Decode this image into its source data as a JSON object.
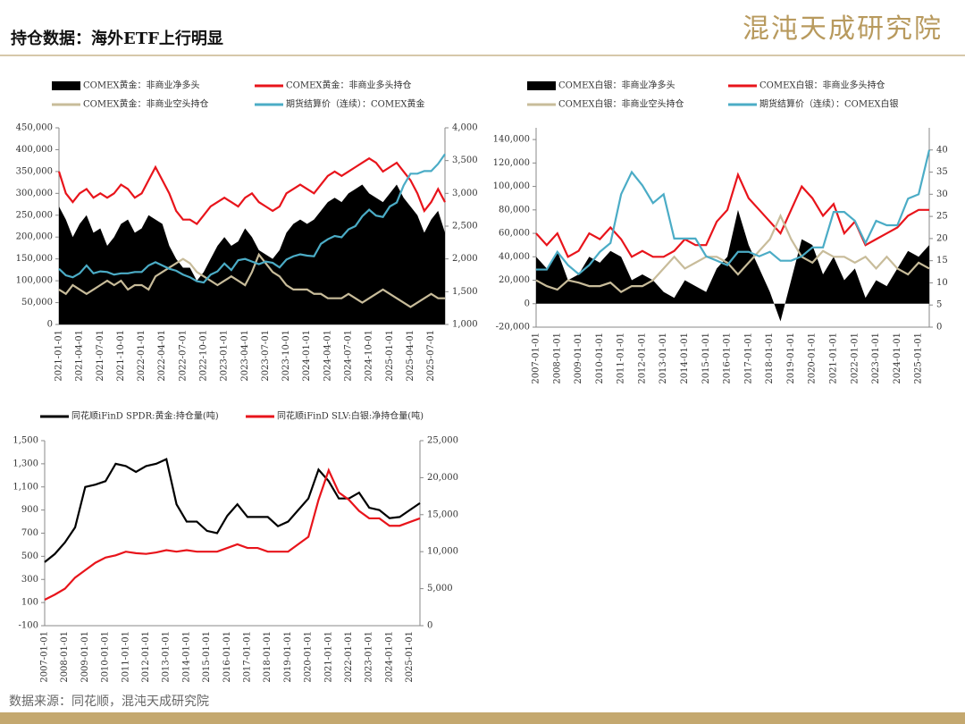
{
  "header": {
    "title": "持仓数据：海外ETF上行明显",
    "logo": "混沌天成研究院"
  },
  "footer": {
    "source": "数据来源：同花顺，混沌天成研究院"
  },
  "chart_data": [
    {
      "type": "line",
      "categories": [
        "2021-01-01",
        null,
        null,
        "2021-04-01",
        null,
        null,
        "2021-07-01",
        null,
        null,
        "2021-10-01",
        null,
        null,
        "2022-01-01",
        null,
        null,
        "2022-04-01",
        null,
        null,
        "2022-07-01",
        null,
        null,
        "2022-10-01",
        null,
        null,
        "2023-01-01",
        null,
        null,
        "2023-04-01",
        null,
        null,
        "2023-07-01",
        null,
        null,
        "2023-10-01",
        null,
        null,
        "2024-01-01",
        null,
        null,
        "2024-04-01",
        null,
        null,
        "2024-07-01",
        null,
        null,
        "2024-10-01",
        null,
        null,
        "2025-01-01",
        null,
        null,
        "2025-04-01",
        null,
        null,
        "2025-07-01",
        null,
        null
      ],
      "ylim": [
        0,
        450000
      ],
      "yticks": [
        0,
        {
          "value": 50000,
          "label": "50,000"
        },
        {
          "value": 100000,
          "label": "100,000"
        },
        {
          "value": 150000,
          "label": "150,000"
        },
        {
          "value": 200000,
          "label": "200,000"
        },
        {
          "value": 250000,
          "label": "250,000"
        },
        {
          "value": 300000,
          "label": "300,000"
        },
        {
          "value": 350000,
          "label": "350,000"
        },
        {
          "value": 400000,
          "label": "400,000"
        },
        {
          "value": 450000,
          "label": "450,000"
        }
      ],
      "y2lim": [
        1000,
        4000
      ],
      "y2ticks": [
        {
          "value": 1000,
          "label": "1,000"
        },
        {
          "value": 1500,
          "label": "1,500"
        },
        {
          "value": 2000,
          "label": "2,000"
        },
        {
          "value": 2500,
          "label": "2,500"
        },
        {
          "value": 3000,
          "label": "3,000"
        },
        {
          "value": 3500,
          "label": "3,500"
        },
        {
          "value": 4000,
          "label": "4,000"
        }
      ],
      "series": [
        {
          "name": "COMEX黄金：非商业净多头",
          "color": "#000000",
          "style": "area",
          "values": [
            270000,
            240000,
            200000,
            230000,
            250000,
            210000,
            220000,
            180000,
            200000,
            230000,
            240000,
            210000,
            220000,
            250000,
            240000,
            230000,
            180000,
            150000,
            130000,
            130000,
            100000,
            120000,
            150000,
            180000,
            200000,
            180000,
            190000,
            220000,
            200000,
            170000,
            160000,
            150000,
            170000,
            210000,
            230000,
            240000,
            230000,
            240000,
            260000,
            280000,
            290000,
            280000,
            300000,
            310000,
            320000,
            300000,
            290000,
            280000,
            300000,
            320000,
            290000,
            270000,
            250000,
            210000,
            240000,
            260000,
            210000
          ]
        },
        {
          "name": "COMEX黄金：非商业多头持仓",
          "color": "#e8141b",
          "style": "line",
          "values": [
            350000,
            300000,
            280000,
            300000,
            310000,
            290000,
            300000,
            290000,
            300000,
            320000,
            310000,
            290000,
            300000,
            330000,
            360000,
            330000,
            300000,
            260000,
            240000,
            240000,
            230000,
            250000,
            270000,
            280000,
            290000,
            280000,
            270000,
            290000,
            300000,
            280000,
            270000,
            260000,
            270000,
            300000,
            310000,
            320000,
            310000,
            300000,
            320000,
            340000,
            350000,
            340000,
            350000,
            360000,
            370000,
            380000,
            370000,
            350000,
            360000,
            370000,
            350000,
            330000,
            300000,
            260000,
            280000,
            310000,
            280000
          ]
        },
        {
          "name": "COMEX黄金：非商业空头持仓",
          "color": "#c8bc9a",
          "style": "line",
          "values": [
            80000,
            70000,
            90000,
            80000,
            70000,
            80000,
            90000,
            100000,
            90000,
            100000,
            80000,
            90000,
            90000,
            80000,
            110000,
            120000,
            130000,
            140000,
            150000,
            140000,
            120000,
            110000,
            100000,
            90000,
            100000,
            110000,
            100000,
            90000,
            120000,
            160000,
            140000,
            120000,
            110000,
            90000,
            80000,
            80000,
            80000,
            70000,
            70000,
            60000,
            60000,
            60000,
            70000,
            60000,
            50000,
            60000,
            70000,
            80000,
            70000,
            60000,
            50000,
            40000,
            50000,
            60000,
            70000,
            60000,
            60000
          ]
        },
        {
          "name": "期货结算价（连续）：COMEX黄金",
          "color": "#4bacc6",
          "style": "line",
          "axis": "y2",
          "values": [
            1850,
            1750,
            1720,
            1780,
            1900,
            1780,
            1810,
            1800,
            1760,
            1780,
            1780,
            1800,
            1800,
            1900,
            1950,
            1900,
            1850,
            1820,
            1760,
            1720,
            1660,
            1640,
            1760,
            1810,
            1930,
            1830,
            1980,
            2000,
            1960,
            1920,
            1960,
            1940,
            1870,
            1990,
            2040,
            2070,
            2050,
            2040,
            2230,
            2300,
            2350,
            2330,
            2450,
            2500,
            2650,
            2750,
            2660,
            2640,
            2800,
            2860,
            3120,
            3300,
            3300,
            3340,
            3340,
            3450,
            3600
          ]
        }
      ]
    },
    {
      "type": "line",
      "categories": [
        "2007-01-01",
        null,
        "2008-01-01",
        null,
        "2009-01-01",
        null,
        "2010-01-01",
        null,
        "2011-01-01",
        null,
        "2012-01-01",
        null,
        "2013-01-01",
        null,
        "2014-01-01",
        null,
        "2015-01-01",
        null,
        "2016-01-01",
        null,
        "2017-01-01",
        null,
        "2018-01-01",
        null,
        "2019-01-01",
        null,
        "2020-01-01",
        null,
        "2021-01-01",
        null,
        "2022-01-01",
        null,
        "2023-01-01",
        null,
        "2024-01-01",
        null,
        "2025-01-01",
        null
      ],
      "ylim": [
        -20000,
        150000
      ],
      "yticks": [
        {
          "value": -20000,
          "label": "-20,000"
        },
        0,
        {
          "value": 20000,
          "label": "20,000"
        },
        {
          "value": 40000,
          "label": "40,000"
        },
        {
          "value": 60000,
          "label": "60,000"
        },
        {
          "value": 80000,
          "label": "80,000"
        },
        {
          "value": 100000,
          "label": "100,000"
        },
        {
          "value": 120000,
          "label": "120,000"
        },
        {
          "value": 140000,
          "label": "140,000"
        }
      ],
      "y2lim": [
        0,
        45
      ],
      "y2ticks": [
        0,
        5,
        10,
        15,
        20,
        25,
        30,
        35,
        40
      ],
      "series": [
        {
          "name": "COMEX白银：非商业净多头",
          "color": "#000000",
          "style": "area",
          "values": [
            40000,
            30000,
            45000,
            20000,
            25000,
            40000,
            35000,
            45000,
            40000,
            20000,
            25000,
            20000,
            10000,
            5000,
            20000,
            15000,
            10000,
            30000,
            40000,
            80000,
            50000,
            30000,
            10000,
            -15000,
            20000,
            55000,
            50000,
            25000,
            40000,
            20000,
            30000,
            5000,
            20000,
            15000,
            30000,
            45000,
            40000,
            50000
          ]
        },
        {
          "name": "COMEX白银：非商业多头持仓",
          "color": "#e8141b",
          "style": "line",
          "values": [
            60000,
            50000,
            60000,
            40000,
            45000,
            60000,
            55000,
            65000,
            55000,
            40000,
            45000,
            40000,
            40000,
            45000,
            55000,
            50000,
            50000,
            70000,
            80000,
            110000,
            90000,
            80000,
            70000,
            60000,
            80000,
            100000,
            90000,
            75000,
            85000,
            60000,
            70000,
            50000,
            55000,
            60000,
            65000,
            75000,
            80000,
            80000
          ]
        },
        {
          "name": "COMEX白银：非商业空头持仓",
          "color": "#c8bc9a",
          "style": "line",
          "values": [
            20000,
            15000,
            12000,
            20000,
            18000,
            15000,
            15000,
            18000,
            10000,
            15000,
            15000,
            20000,
            30000,
            40000,
            30000,
            35000,
            40000,
            40000,
            35000,
            25000,
            35000,
            45000,
            55000,
            75000,
            55000,
            40000,
            35000,
            45000,
            40000,
            40000,
            35000,
            40000,
            30000,
            40000,
            30000,
            25000,
            35000,
            30000
          ]
        },
        {
          "name": "期货结算价（连续）：COMEX白银",
          "color": "#4bacc6",
          "style": "line",
          "axis": "y2",
          "values": [
            13,
            13,
            17,
            14,
            12,
            14,
            17,
            19,
            30,
            35,
            32,
            28,
            30,
            20,
            20,
            20,
            16,
            15,
            14,
            17,
            17,
            16,
            17,
            15,
            15,
            16,
            18,
            18,
            26,
            26,
            24,
            19,
            24,
            23,
            23,
            29,
            30,
            40
          ]
        }
      ]
    },
    {
      "type": "line",
      "categories": [
        "2007-01-01",
        null,
        "2008-01-01",
        null,
        "2009-01-01",
        null,
        "2010-01-01",
        null,
        "2011-01-01",
        null,
        "2012-01-01",
        null,
        "2013-01-01",
        null,
        "2014-01-01",
        null,
        "2015-01-01",
        null,
        "2016-01-01",
        null,
        "2017-01-01",
        null,
        "2018-01-01",
        null,
        "2019-01-01",
        null,
        "2020-01-01",
        null,
        "2021-01-01",
        null,
        "2022-01-01",
        null,
        "2023-01-01",
        null,
        "2024-01-01",
        null,
        "2025-01-01",
        null
      ],
      "ylim": [
        -100,
        1500
      ],
      "yticks": [
        -100,
        100,
        300,
        500,
        700,
        900,
        {
          "value": 1100,
          "label": "1,100"
        },
        {
          "value": 1300,
          "label": "1,300"
        },
        {
          "value": 1500,
          "label": "1,500"
        }
      ],
      "y2lim": [
        0,
        25000
      ],
      "y2ticks": [
        0,
        {
          "value": 5000,
          "label": "5,000"
        },
        {
          "value": 10000,
          "label": "10,000"
        },
        {
          "value": 15000,
          "label": "15,000"
        },
        {
          "value": 20000,
          "label": "20,000"
        },
        {
          "value": 25000,
          "label": "25,000"
        }
      ],
      "series": [
        {
          "name": "同花顺iFinD SPDR:黄金:持仓量(吨)",
          "color": "#000000",
          "style": "line",
          "values": [
            450,
            520,
            620,
            750,
            1100,
            1120,
            1150,
            1300,
            1280,
            1230,
            1280,
            1300,
            1340,
            950,
            800,
            800,
            720,
            700,
            850,
            950,
            840,
            840,
            840,
            760,
            800,
            900,
            1000,
            1250,
            1150,
            1000,
            1000,
            1050,
            920,
            900,
            830,
            840,
            900,
            960
          ]
        },
        {
          "name": "同花顺iFinD SLV:白银:净持仓量(吨)",
          "color": "#e8141b",
          "style": "line",
          "axis": "y2",
          "values": [
            3500,
            4200,
            5000,
            6500,
            7500,
            8500,
            9200,
            9500,
            10000,
            9800,
            9700,
            9900,
            10200,
            10000,
            10200,
            10000,
            10000,
            10000,
            10500,
            11000,
            10500,
            10500,
            10000,
            10000,
            10000,
            11000,
            12000,
            17000,
            21000,
            18000,
            17000,
            15500,
            14500,
            14500,
            13500,
            13500,
            14000,
            14500
          ]
        }
      ]
    }
  ]
}
